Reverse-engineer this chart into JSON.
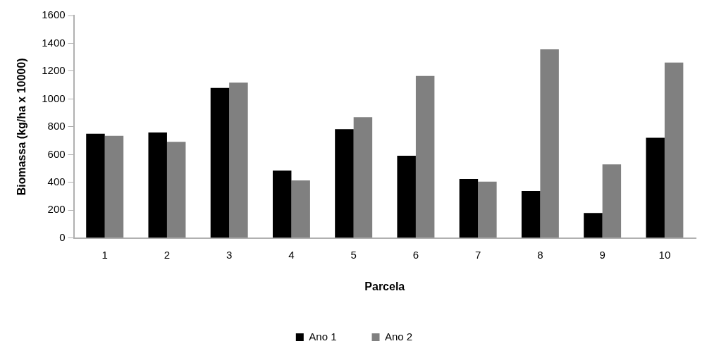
{
  "chart_data": {
    "type": "bar",
    "xlabel": "Parcela",
    "ylabel": "Biomassa (kg/ha x 10000)",
    "categories": [
      "1",
      "2",
      "3",
      "4",
      "5",
      "6",
      "7",
      "8",
      "9",
      "10"
    ],
    "series": [
      {
        "name": "Ano 1",
        "color": "#000000",
        "values": [
          750,
          759,
          1080,
          486,
          783,
          592,
          424,
          338,
          180,
          721
        ]
      },
      {
        "name": "Ano 2",
        "color": "#808080",
        "values": [
          735,
          692,
          1118,
          415,
          869,
          1166,
          405,
          1357,
          530,
          1262
        ]
      }
    ],
    "ylim": [
      0,
      1600
    ],
    "yticks": [
      0,
      200,
      400,
      600,
      800,
      1000,
      1200,
      1400,
      1600
    ],
    "grid": false,
    "legend": "bottom"
  }
}
